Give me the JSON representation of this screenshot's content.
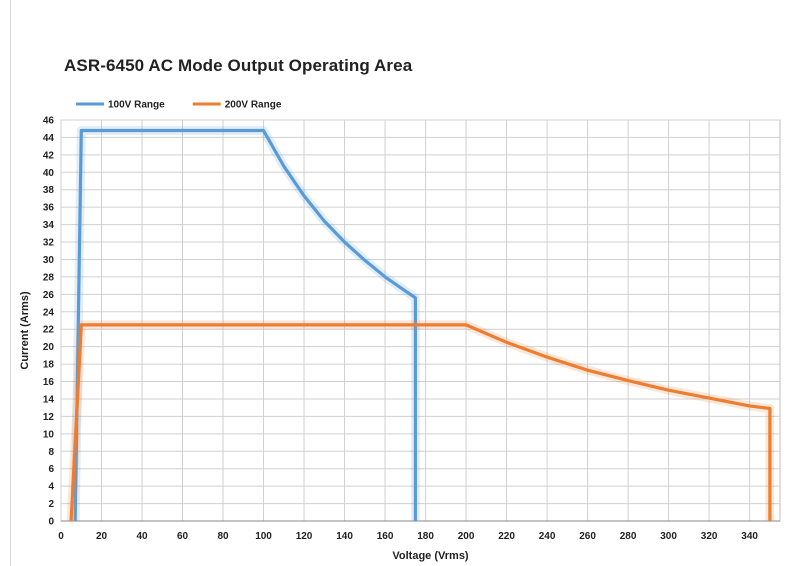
{
  "chart_data": {
    "type": "line",
    "title": "ASR-6450 AC Mode Output Operating Area",
    "xlabel": "Voltage (Vrms)",
    "ylabel": "Current (Arms)",
    "xlim": [
      0,
      355
    ],
    "ylim": [
      0,
      46
    ],
    "x_ticks": [
      0,
      20,
      40,
      60,
      80,
      100,
      120,
      140,
      160,
      180,
      200,
      220,
      240,
      260,
      280,
      300,
      320,
      340
    ],
    "y_ticks": [
      0,
      2,
      4,
      6,
      8,
      10,
      12,
      14,
      16,
      18,
      20,
      22,
      24,
      26,
      28,
      30,
      32,
      34,
      36,
      38,
      40,
      42,
      44,
      46
    ],
    "grid": true,
    "legend_position": "top-left",
    "series": [
      {
        "name": "100V Range",
        "color": "#5b9bd5",
        "points": [
          [
            7,
            0
          ],
          [
            10,
            44.8
          ],
          [
            100,
            44.8
          ],
          [
            110,
            40.7
          ],
          [
            120,
            37.3
          ],
          [
            130,
            34.4
          ],
          [
            140,
            32.0
          ],
          [
            150,
            29.9
          ],
          [
            160,
            28.0
          ],
          [
            170,
            26.4
          ],
          [
            175,
            25.6
          ],
          [
            175,
            0
          ]
        ]
      },
      {
        "name": "200V Range",
        "color": "#ed7d31",
        "points": [
          [
            5,
            0
          ],
          [
            10,
            22.5
          ],
          [
            200,
            22.5
          ],
          [
            220,
            20.5
          ],
          [
            240,
            18.8
          ],
          [
            260,
            17.3
          ],
          [
            280,
            16.1
          ],
          [
            300,
            15.0
          ],
          [
            320,
            14.1
          ],
          [
            340,
            13.2
          ],
          [
            350,
            12.9
          ],
          [
            350,
            0
          ]
        ]
      }
    ]
  }
}
